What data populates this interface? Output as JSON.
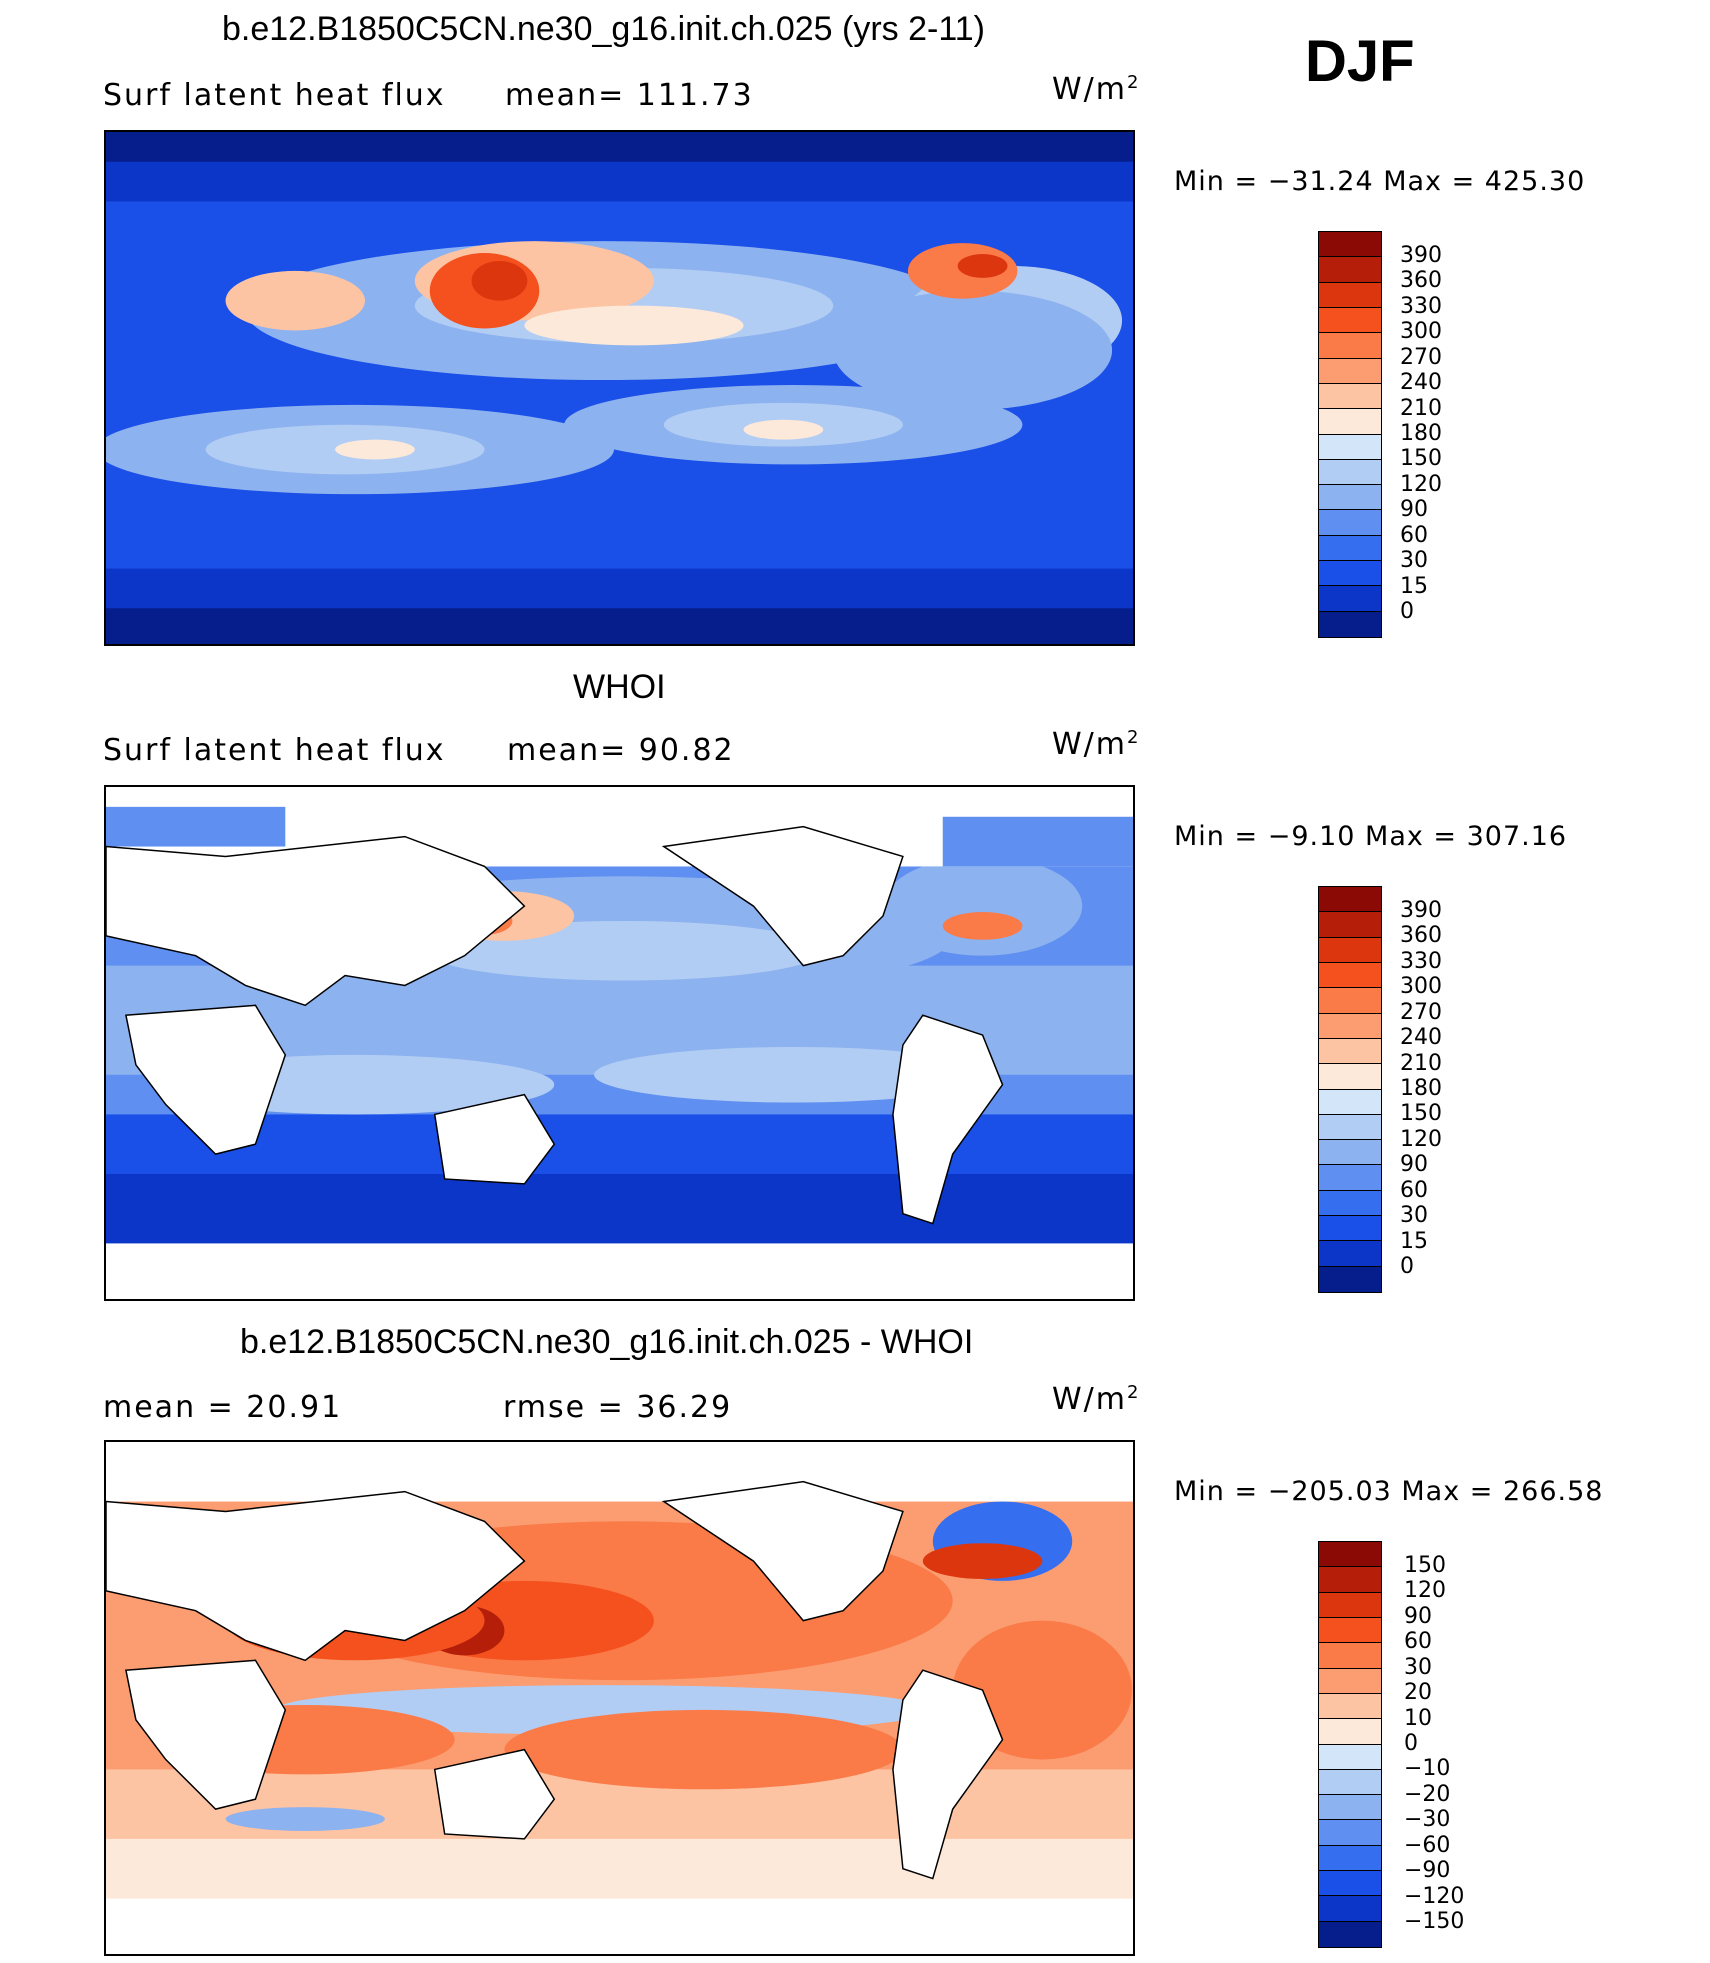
{
  "season": "DJF",
  "units_base": "W/m",
  "units_exp": "2",
  "panels": [
    {
      "title": "b.e12.B1850C5CN.ne30_g16.init.ch.025 (yrs 2-11)",
      "left": "Surf  latent  heat  flux",
      "mean": "mean=  111.73",
      "minmax": "Min  =  −31.24  Max  =  425.30"
    },
    {
      "title": "WHOI",
      "left": "Surf  latent  heat  flux",
      "mean": "mean=   90.82",
      "minmax": "Min  =   −9.10  Max  =  307.16"
    },
    {
      "title": "b.e12.B1850C5CN.ne30_g16.init.ch.025 - WHOI",
      "left": "mean  =    20.91",
      "mean": "rmse  =    36.29",
      "minmax": "Min  =  −205.03  Max  =  266.58"
    }
  ],
  "chart_data": [
    {
      "type": "heatmap",
      "title": "b.e12.B1850C5CN.ne30_g16.init.ch.025 (yrs 2-11)",
      "variable": "Surf latent heat flux",
      "units": "W/m2",
      "mean": 111.73,
      "min": -31.24,
      "max": 425.3,
      "colorbar_levels": [
        "390",
        "360",
        "330",
        "300",
        "270",
        "240",
        "210",
        "180",
        "150",
        "120",
        "90",
        "60",
        "30",
        "15",
        "0"
      ],
      "colorbar_colors": [
        "#8b0a05",
        "#b51f0a",
        "#dc360f",
        "#f4511e",
        "#fa7a48",
        "#fb9d70",
        "#fdc4a3",
        "#fde9d9",
        "#d3e5f8",
        "#b2cdf3",
        "#8db2f0",
        "#5f8ff0",
        "#356ff0",
        "#1a4fe8",
        "#0b36c8",
        "#061e8c"
      ]
    },
    {
      "type": "heatmap",
      "title": "WHOI",
      "variable": "Surf latent heat flux",
      "units": "W/m2",
      "mean": 90.82,
      "min": -9.1,
      "max": 307.16,
      "colorbar_levels": [
        "390",
        "360",
        "330",
        "300",
        "270",
        "240",
        "210",
        "180",
        "150",
        "120",
        "90",
        "60",
        "30",
        "15",
        "0"
      ],
      "colorbar_colors": [
        "#8b0a05",
        "#b51f0a",
        "#dc360f",
        "#f4511e",
        "#fa7a48",
        "#fb9d70",
        "#fdc4a3",
        "#fde9d9",
        "#d3e5f8",
        "#b2cdf3",
        "#8db2f0",
        "#5f8ff0",
        "#356ff0",
        "#1a4fe8",
        "#0b36c8",
        "#061e8c"
      ]
    },
    {
      "type": "heatmap",
      "title": "b.e12.B1850C5CN.ne30_g16.init.ch.025 - WHOI",
      "units": "W/m2",
      "mean": 20.91,
      "rmse": 36.29,
      "min": -205.03,
      "max": 266.58,
      "colorbar_levels": [
        "150",
        "120",
        "90",
        "60",
        "30",
        "20",
        "10",
        "0",
        "−10",
        "−20",
        "−30",
        "−60",
        "−90",
        "−120",
        "−150"
      ],
      "colorbar_colors": [
        "#8b0a05",
        "#b51f0a",
        "#dc360f",
        "#f4511e",
        "#fa7a48",
        "#fb9d70",
        "#fdc4a3",
        "#fde9d9",
        "#d3e5f8",
        "#b2cdf3",
        "#8db2f0",
        "#5f8ff0",
        "#356ff0",
        "#1a4fe8",
        "#0b36c8",
        "#061e8c"
      ]
    }
  ]
}
